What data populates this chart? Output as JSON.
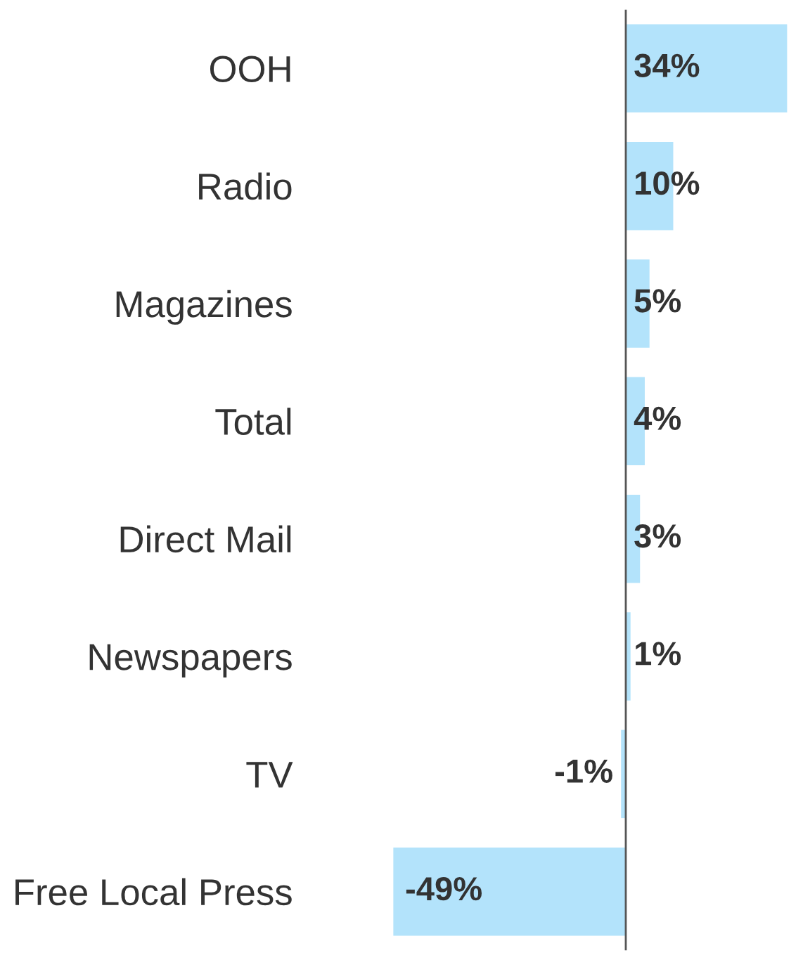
{
  "chart_data": {
    "type": "bar",
    "orientation": "horizontal",
    "categories": [
      "OOH",
      "Radio",
      "Magazines",
      "Total",
      "Direct Mail",
      "Newspapers",
      "TV",
      "Free Local Press"
    ],
    "values": [
      34,
      10,
      5,
      4,
      3,
      1,
      -1,
      -49
    ],
    "value_labels": [
      "34%",
      "10%",
      "5%",
      "4%",
      "3%",
      "1%",
      "-1%",
      "-49%"
    ],
    "color": "#b3e3fb",
    "grid": false,
    "legend": false
  }
}
